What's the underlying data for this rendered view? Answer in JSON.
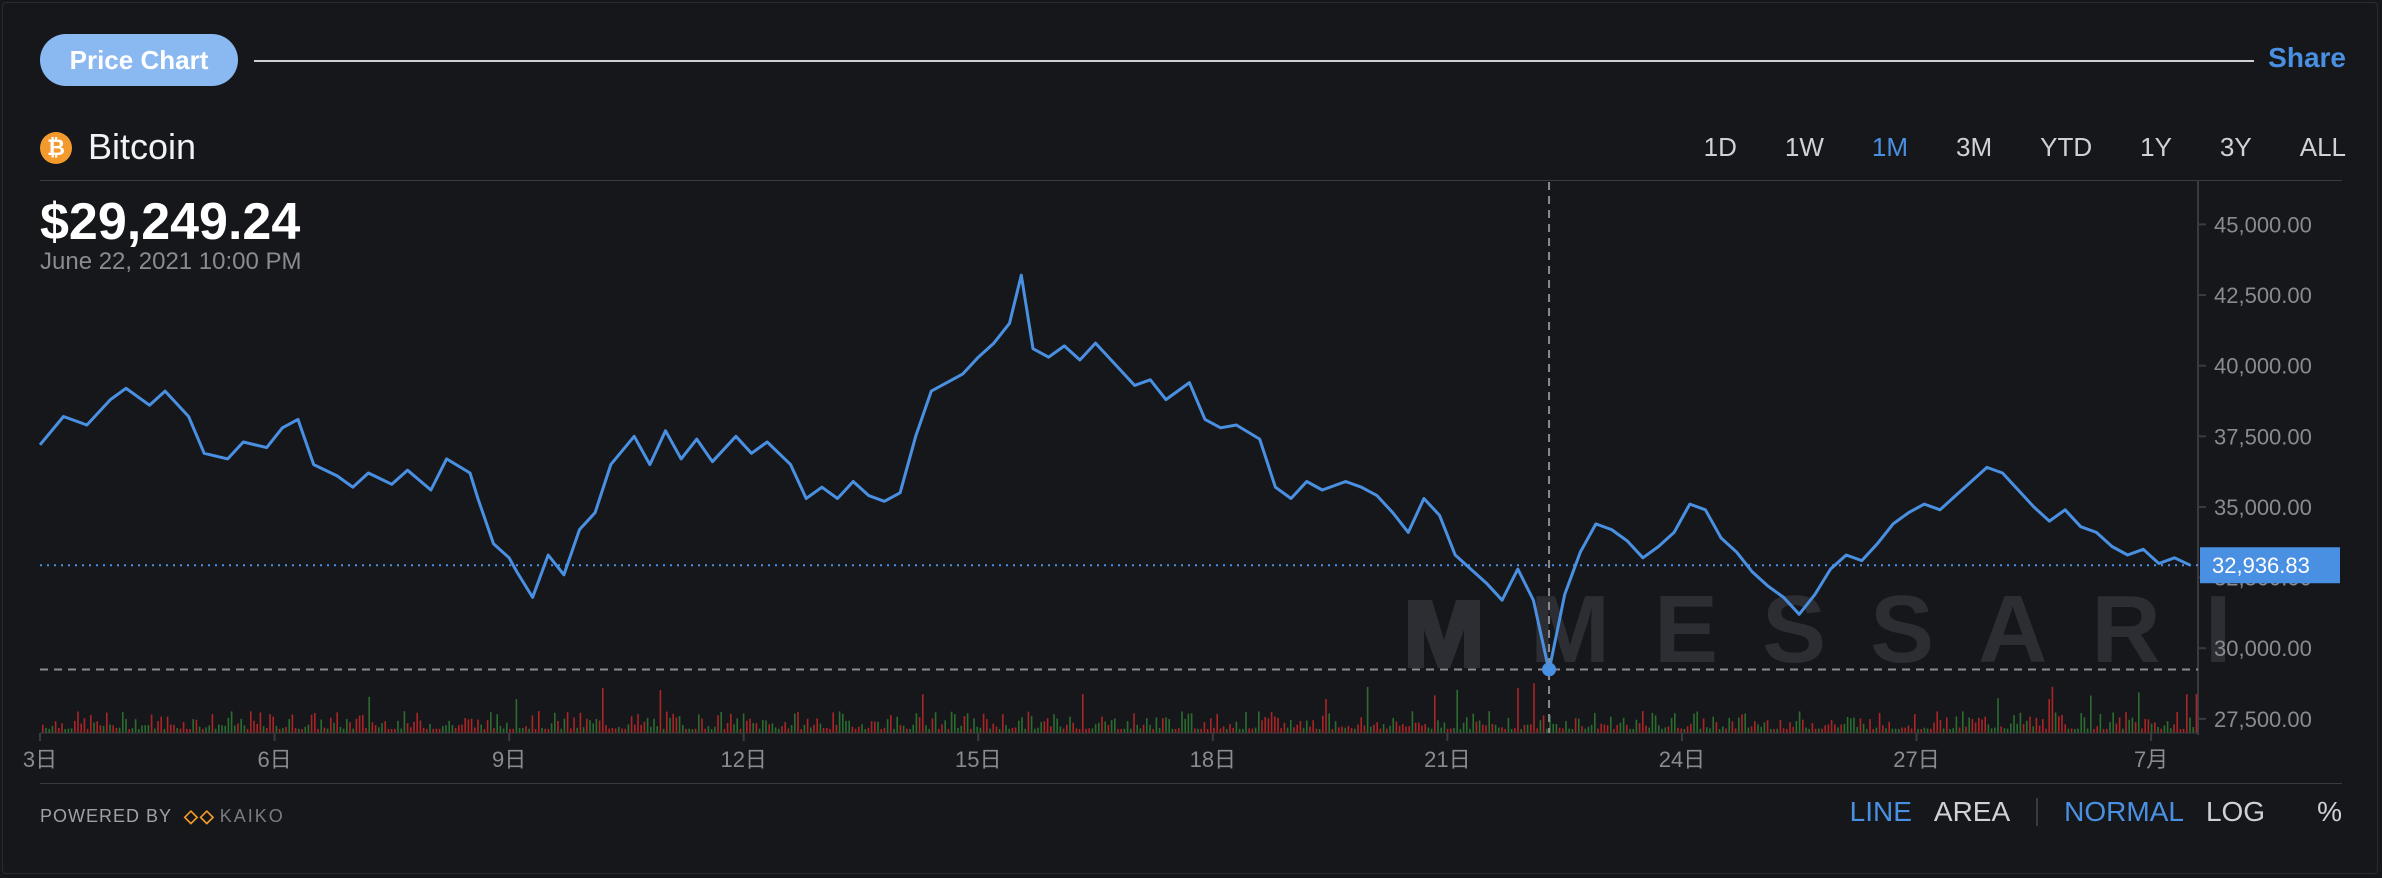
{
  "header": {
    "tab_label": "Price Chart",
    "share_label": "Share"
  },
  "asset": {
    "icon_glyph": "₿",
    "name": "Bitcoin",
    "icon_color": "#f39a2c"
  },
  "ranges": [
    "1D",
    "1W",
    "1M",
    "3M",
    "YTD",
    "1Y",
    "3Y",
    "ALL"
  ],
  "active_range": "1M",
  "readout": {
    "price": "$29,249.24",
    "date": "June 22, 2021 10:00 PM"
  },
  "footer": {
    "powered_by": "POWERED BY",
    "brand": "KAIKO",
    "chart_types": [
      "LINE",
      "AREA"
    ],
    "active_chart_type": "LINE",
    "scales": [
      "NORMAL",
      "LOG",
      "%"
    ],
    "active_scale": "NORMAL"
  },
  "watermark": "MESSARI",
  "colors": {
    "line": "#4a90e2",
    "accent": "#4a90e2",
    "vol_up": "#2e7d32",
    "vol_down": "#c62828"
  },
  "chart_data": {
    "type": "line",
    "series": [
      {
        "color": "#4a90e2",
        "points": [
          [
            3.0,
            37200
          ],
          [
            3.3,
            38200
          ],
          [
            3.6,
            37900
          ],
          [
            3.9,
            38800
          ],
          [
            4.1,
            39200
          ],
          [
            4.4,
            38600
          ],
          [
            4.6,
            39100
          ],
          [
            4.9,
            38200
          ],
          [
            5.1,
            36900
          ],
          [
            5.4,
            36700
          ],
          [
            5.6,
            37300
          ],
          [
            5.9,
            37100
          ],
          [
            6.1,
            37800
          ],
          [
            6.3,
            38100
          ],
          [
            6.5,
            36500
          ],
          [
            6.8,
            36100
          ],
          [
            7.0,
            35700
          ],
          [
            7.2,
            36200
          ],
          [
            7.5,
            35800
          ],
          [
            7.7,
            36300
          ],
          [
            8.0,
            35600
          ],
          [
            8.2,
            36700
          ],
          [
            8.5,
            36200
          ],
          [
            8.6,
            35300
          ],
          [
            8.8,
            33700
          ],
          [
            9.0,
            33200
          ],
          [
            9.1,
            32700
          ],
          [
            9.3,
            31800
          ],
          [
            9.5,
            33300
          ],
          [
            9.7,
            32600
          ],
          [
            9.9,
            34200
          ],
          [
            10.1,
            34800
          ],
          [
            10.3,
            36500
          ],
          [
            10.6,
            37500
          ],
          [
            10.8,
            36500
          ],
          [
            11.0,
            37700
          ],
          [
            11.2,
            36700
          ],
          [
            11.4,
            37400
          ],
          [
            11.6,
            36600
          ],
          [
            11.9,
            37500
          ],
          [
            12.1,
            36900
          ],
          [
            12.3,
            37300
          ],
          [
            12.6,
            36500
          ],
          [
            12.8,
            35300
          ],
          [
            13.0,
            35700
          ],
          [
            13.2,
            35300
          ],
          [
            13.4,
            35900
          ],
          [
            13.6,
            35400
          ],
          [
            13.8,
            35200
          ],
          [
            14.0,
            35500
          ],
          [
            14.2,
            37500
          ],
          [
            14.4,
            39100
          ],
          [
            14.6,
            39400
          ],
          [
            14.8,
            39700
          ],
          [
            15.0,
            40300
          ],
          [
            15.2,
            40800
          ],
          [
            15.4,
            41500
          ],
          [
            15.55,
            43200
          ],
          [
            15.7,
            40600
          ],
          [
            15.9,
            40300
          ],
          [
            16.1,
            40700
          ],
          [
            16.3,
            40200
          ],
          [
            16.5,
            40800
          ],
          [
            16.8,
            39900
          ],
          [
            17.0,
            39300
          ],
          [
            17.2,
            39500
          ],
          [
            17.4,
            38800
          ],
          [
            17.7,
            39400
          ],
          [
            17.9,
            38100
          ],
          [
            18.1,
            37800
          ],
          [
            18.3,
            37900
          ],
          [
            18.6,
            37400
          ],
          [
            18.8,
            35700
          ],
          [
            19.0,
            35300
          ],
          [
            19.2,
            35900
          ],
          [
            19.4,
            35600
          ],
          [
            19.7,
            35900
          ],
          [
            19.9,
            35700
          ],
          [
            20.1,
            35400
          ],
          [
            20.3,
            34800
          ],
          [
            20.5,
            34100
          ],
          [
            20.7,
            35300
          ],
          [
            20.9,
            34700
          ],
          [
            21.1,
            33300
          ],
          [
            21.3,
            32800
          ],
          [
            21.5,
            32300
          ],
          [
            21.7,
            31700
          ],
          [
            21.9,
            32800
          ],
          [
            22.1,
            31700
          ],
          [
            22.3,
            29200
          ],
          [
            22.5,
            31900
          ],
          [
            22.7,
            33400
          ],
          [
            22.9,
            34400
          ],
          [
            23.1,
            34200
          ],
          [
            23.3,
            33800
          ],
          [
            23.5,
            33200
          ],
          [
            23.7,
            33600
          ],
          [
            23.9,
            34100
          ],
          [
            24.1,
            35100
          ],
          [
            24.3,
            34900
          ],
          [
            24.5,
            33900
          ],
          [
            24.7,
            33400
          ],
          [
            24.9,
            32700
          ],
          [
            25.1,
            32200
          ],
          [
            25.3,
            31800
          ],
          [
            25.5,
            31200
          ],
          [
            25.7,
            31900
          ],
          [
            25.9,
            32800
          ],
          [
            26.1,
            33300
          ],
          [
            26.3,
            33100
          ],
          [
            26.5,
            33700
          ],
          [
            26.7,
            34400
          ],
          [
            26.9,
            34800
          ],
          [
            27.1,
            35100
          ],
          [
            27.3,
            34900
          ],
          [
            27.5,
            35400
          ],
          [
            27.7,
            35900
          ],
          [
            27.9,
            36400
          ],
          [
            28.1,
            36200
          ],
          [
            28.3,
            35600
          ],
          [
            28.5,
            35000
          ],
          [
            28.7,
            34500
          ],
          [
            28.9,
            34900
          ],
          [
            29.1,
            34300
          ],
          [
            29.3,
            34100
          ],
          [
            29.5,
            33600
          ],
          [
            29.7,
            33300
          ],
          [
            29.9,
            33500
          ],
          [
            30.1,
            33000
          ],
          [
            30.3,
            33200
          ],
          [
            30.5,
            32936.83
          ]
        ]
      }
    ],
    "x_ticks": [
      {
        "value": 3,
        "label": "3日"
      },
      {
        "value": 6,
        "label": "6日"
      },
      {
        "value": 9,
        "label": "9日"
      },
      {
        "value": 12,
        "label": "12日"
      },
      {
        "value": 15,
        "label": "15日"
      },
      {
        "value": 18,
        "label": "18日"
      },
      {
        "value": 21,
        "label": "21日"
      },
      {
        "value": 24,
        "label": "24日"
      },
      {
        "value": 27,
        "label": "27日"
      },
      {
        "value": 30,
        "label": "7月"
      }
    ],
    "y_ticks": [
      "27,500.00",
      "30,000.00",
      "32,500.00",
      "35,000.00",
      "37,500.00",
      "40,000.00",
      "42,500.00",
      "45,000.00"
    ],
    "y_tick_values": [
      27500,
      30000,
      32500,
      35000,
      37500,
      40000,
      42500,
      45000
    ],
    "xlim": [
      3,
      30.6
    ],
    "ylim": [
      27000,
      46500
    ],
    "current_value": 32936.83,
    "current_label": "32,936.83",
    "crosshair": {
      "x": 22.3,
      "y": 29249.24
    },
    "volume_note": "volume bars at bottom (unlabeled)",
    "grid": false
  }
}
